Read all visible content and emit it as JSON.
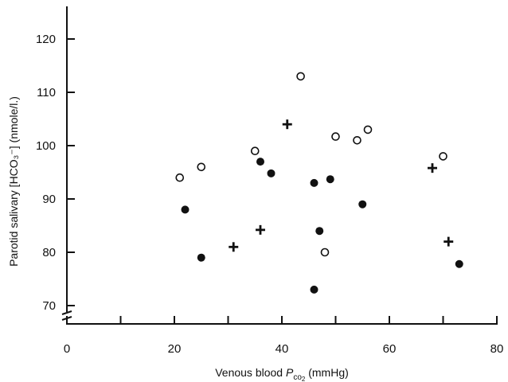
{
  "chart_data": {
    "type": "scatter",
    "title": "",
    "xlabel_main": "Venous blood ",
    "xlabel_symbol": "P",
    "xlabel_sub": "co",
    "xlabel_subsub": "2",
    "xlabel_unit": " (mmHg)",
    "ylabel": "Parotid salivary [HCO₃⁻] (nmole/l.)",
    "xlim": [
      0,
      80
    ],
    "ylim": [
      70,
      120
    ],
    "x_ticks": [
      0,
      20,
      40,
      60,
      80
    ],
    "y_ticks": [
      70,
      80,
      90,
      100,
      110,
      120
    ],
    "x_tick_labels": [
      "0",
      "20",
      "40",
      "60",
      "80"
    ],
    "y_tick_labels": [
      "70",
      "80",
      "90",
      "100",
      "110",
      "120"
    ],
    "y_axis_break": true,
    "grid": false,
    "series": [
      {
        "marker": "open-circle",
        "points": [
          {
            "x": 21,
            "y": 94
          },
          {
            "x": 25,
            "y": 96
          },
          {
            "x": 35,
            "y": 99
          },
          {
            "x": 43.5,
            "y": 113
          },
          {
            "x": 48,
            "y": 80
          },
          {
            "x": 50,
            "y": 101.7
          },
          {
            "x": 54,
            "y": 101
          },
          {
            "x": 56,
            "y": 103
          },
          {
            "x": 70,
            "y": 98
          }
        ]
      },
      {
        "marker": "filled-circle",
        "points": [
          {
            "x": 22,
            "y": 88
          },
          {
            "x": 25,
            "y": 79
          },
          {
            "x": 36,
            "y": 97
          },
          {
            "x": 38,
            "y": 94.8
          },
          {
            "x": 46,
            "y": 93
          },
          {
            "x": 46,
            "y": 73
          },
          {
            "x": 47,
            "y": 84
          },
          {
            "x": 49,
            "y": 93.7
          },
          {
            "x": 55,
            "y": 89
          },
          {
            "x": 73,
            "y": 77.8
          }
        ]
      },
      {
        "marker": "plus",
        "points": [
          {
            "x": 31,
            "y": 81
          },
          {
            "x": 36,
            "y": 84.2
          },
          {
            "x": 41,
            "y": 104
          },
          {
            "x": 68,
            "y": 95.8
          },
          {
            "x": 71,
            "y": 82
          }
        ]
      }
    ]
  }
}
